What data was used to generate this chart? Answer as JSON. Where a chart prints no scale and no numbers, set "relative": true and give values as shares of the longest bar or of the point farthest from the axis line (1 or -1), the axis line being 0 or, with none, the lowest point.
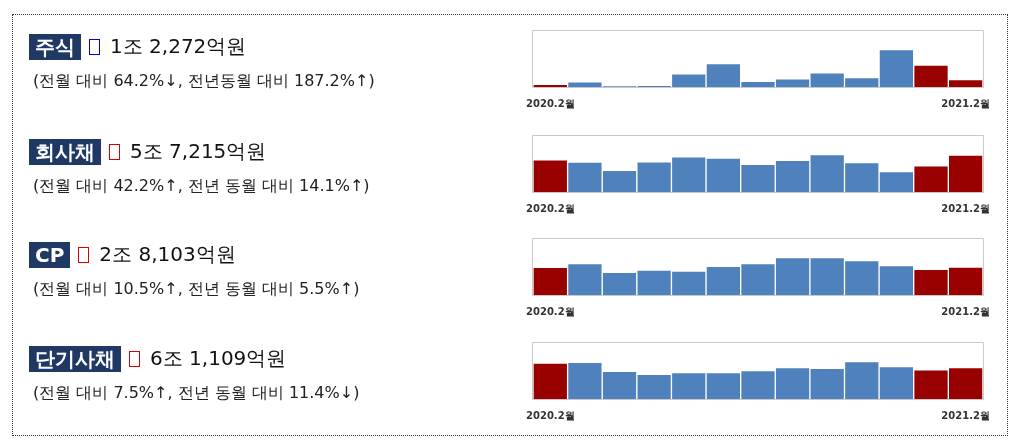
{
  "chart_data": [
    {
      "type": "bar",
      "relative": true,
      "annotations": [
        "주식",
        "1조 2,272억원",
        "(전월 대비 64.2%↓, 전년동월 대비 187.2%↑)"
      ],
      "categories": [
        "2020.2월",
        null,
        null,
        null,
        null,
        null,
        null,
        null,
        null,
        null,
        null,
        null,
        "2021.2월"
      ],
      "values": [
        0.07,
        0.14,
        0.02,
        0.04,
        0.35,
        0.63,
        0.15,
        0.22,
        0.38,
        0.25,
        1,
        0.59,
        0.2
      ],
      "colors": [
        "#990000",
        "#4f81bd",
        "#4f81bd",
        "#4f81bd",
        "#4f81bd",
        "#4f81bd",
        "#4f81bd",
        "#4f81bd",
        "#4f81bd",
        "#4f81bd",
        "#4f81bd",
        "#990000",
        "#990000"
      ]
    },
    {
      "type": "bar",
      "relative": true,
      "annotations": [
        "회사채",
        "5조 7,215억원",
        "(전월 대비 42.2%↑, 전년 동월 대비 14.1%↑)"
      ],
      "categories": [
        "2020.2월",
        null,
        null,
        null,
        null,
        null,
        null,
        null,
        null,
        null,
        null,
        null,
        "2021.2월"
      ],
      "values": [
        0.86,
        0.8,
        0.58,
        0.81,
        0.94,
        0.91,
        0.74,
        0.85,
        1,
        0.79,
        0.55,
        0.7,
        0.99
      ],
      "colors": [
        "#990000",
        "#4f81bd",
        "#4f81bd",
        "#4f81bd",
        "#4f81bd",
        "#4f81bd",
        "#4f81bd",
        "#4f81bd",
        "#4f81bd",
        "#4f81bd",
        "#4f81bd",
        "#990000",
        "#990000"
      ]
    },
    {
      "type": "bar",
      "relative": true,
      "annotations": [
        "CP",
        "2조 8,103억원",
        "(전월 대비 10.5%↑, 전년 동월 대비 5.5%↑)"
      ],
      "categories": [
        "2020.2월",
        null,
        null,
        null,
        null,
        null,
        null,
        null,
        null,
        null,
        null,
        null,
        "2021.2월"
      ],
      "values": [
        0.74,
        0.84,
        0.61,
        0.67,
        0.64,
        0.77,
        0.84,
        1,
        1,
        0.92,
        0.79,
        0.69,
        0.75
      ],
      "colors": [
        "#990000",
        "#4f81bd",
        "#4f81bd",
        "#4f81bd",
        "#4f81bd",
        "#4f81bd",
        "#4f81bd",
        "#4f81bd",
        "#4f81bd",
        "#4f81bd",
        "#4f81bd",
        "#990000",
        "#990000"
      ]
    },
    {
      "type": "bar",
      "relative": true,
      "annotations": [
        "단기사채",
        "6조 1,109억원",
        "(전월 대비 7.5%↑, 전년 동월 대비 11.4%↓)"
      ],
      "categories": [
        "2020.2월",
        null,
        null,
        null,
        null,
        null,
        null,
        null,
        null,
        null,
        null,
        null,
        "2021.2월"
      ],
      "values": [
        0.96,
        0.98,
        0.74,
        0.66,
        0.71,
        0.71,
        0.76,
        0.84,
        0.82,
        1,
        0.87,
        0.78,
        0.84
      ],
      "colors": [
        "#990000",
        "#4f81bd",
        "#4f81bd",
        "#4f81bd",
        "#4f81bd",
        "#4f81bd",
        "#4f81bd",
        "#4f81bd",
        "#4f81bd",
        "#4f81bd",
        "#4f81bd",
        "#990000",
        "#990000"
      ]
    }
  ]
}
